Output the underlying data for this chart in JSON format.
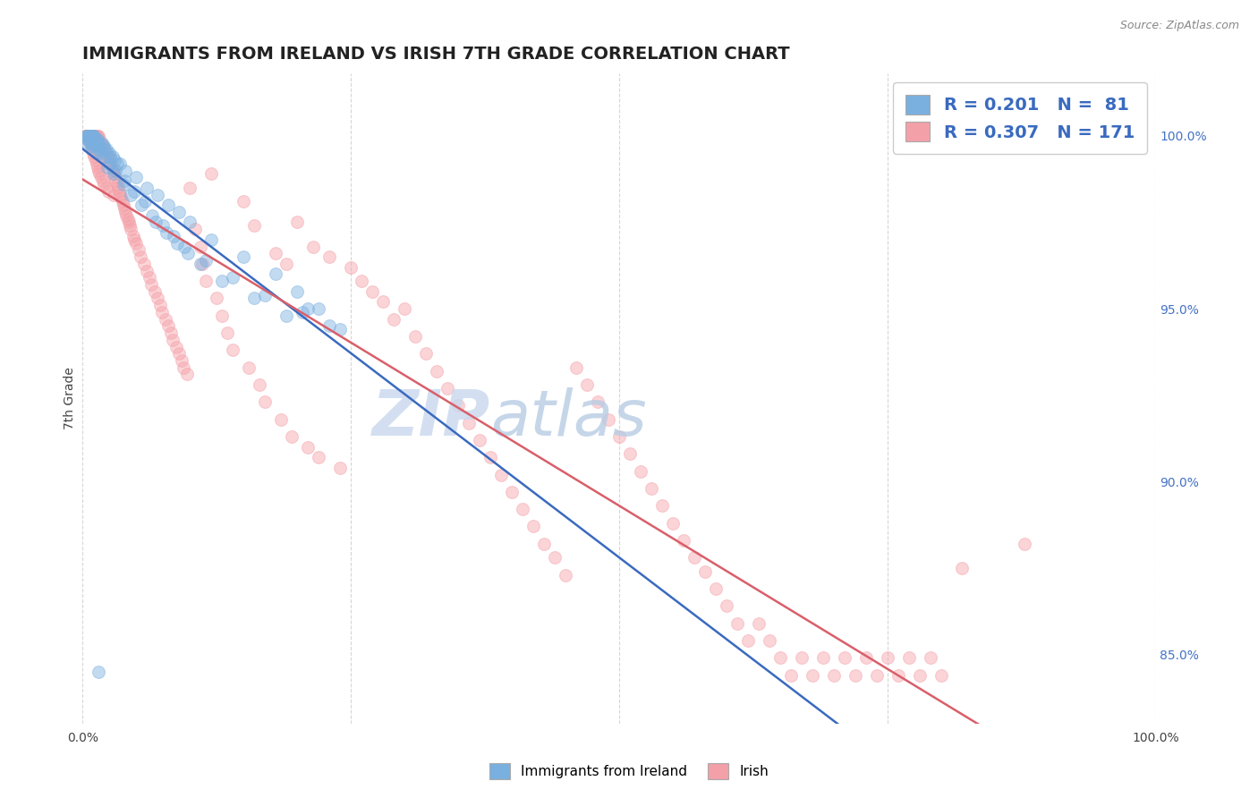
{
  "title": "IMMIGRANTS FROM IRELAND VS IRISH 7TH GRADE CORRELATION CHART",
  "source_text": "Source: ZipAtlas.com",
  "ylabel": "7th Grade",
  "legend_label_blue": "Immigrants from Ireland",
  "legend_label_pink": "Irish",
  "legend_r_blue": "R = 0.201",
  "legend_n_blue": "N =  81",
  "legend_r_pink": "R = 0.307",
  "legend_n_pink": "N = 171",
  "watermark_zip": "ZIP",
  "watermark_atlas": "atlas",
  "blue_color": "#7ab0e0",
  "pink_color": "#f4a0a8",
  "blue_line_color": "#3a6abf",
  "pink_line_color": "#d95f6a",
  "right_ytick_color": "#4472c4",
  "blue_scatter_x": [
    0.3,
    0.4,
    0.5,
    0.5,
    0.5,
    0.6,
    0.6,
    0.7,
    0.8,
    0.8,
    0.8,
    0.9,
    0.9,
    1.0,
    1.0,
    1.0,
    1.0,
    1.1,
    1.1,
    1.2,
    1.3,
    1.3,
    1.4,
    1.4,
    1.5,
    1.5,
    1.6,
    1.7,
    1.8,
    2.0,
    2.0,
    2.1,
    2.2,
    2.3,
    2.5,
    2.5,
    2.6,
    2.8,
    2.9,
    3.0,
    3.1,
    3.2,
    3.5,
    3.8,
    3.9,
    4.0,
    4.5,
    4.8,
    5.0,
    5.5,
    5.8,
    6.0,
    6.5,
    6.8,
    7.0,
    7.5,
    7.8,
    8.0,
    8.5,
    8.8,
    9.0,
    9.5,
    9.8,
    10.0,
    11.0,
    11.5,
    12.0,
    13.0,
    14.0,
    15.0,
    16.0,
    17.0,
    18.0,
    19.0,
    20.0,
    20.5,
    21.0,
    22.0,
    23.0,
    24.0,
    1.5
  ],
  "blue_scatter_y": [
    100.0,
    100.0,
    100.0,
    99.9,
    99.8,
    100.0,
    99.9,
    100.0,
    100.0,
    99.8,
    99.7,
    100.0,
    99.8,
    100.0,
    100.0,
    99.9,
    99.7,
    100.0,
    99.9,
    99.9,
    99.9,
    99.5,
    99.9,
    99.7,
    99.8,
    99.6,
    99.7,
    99.5,
    99.8,
    99.7,
    99.4,
    99.6,
    99.6,
    99.1,
    99.5,
    99.2,
    99.4,
    99.4,
    98.9,
    99.3,
    99.0,
    99.2,
    99.2,
    98.6,
    98.7,
    99.0,
    98.3,
    98.4,
    98.8,
    98.0,
    98.1,
    98.5,
    97.7,
    97.5,
    98.3,
    97.4,
    97.2,
    98.0,
    97.1,
    96.9,
    97.8,
    96.8,
    96.6,
    97.5,
    96.3,
    96.4,
    97.0,
    95.8,
    95.9,
    96.5,
    95.3,
    95.4,
    96.0,
    94.8,
    95.5,
    94.9,
    95.0,
    95.0,
    94.5,
    94.4,
    84.5
  ],
  "pink_scatter_x": [
    0.2,
    0.3,
    0.3,
    0.4,
    0.4,
    0.5,
    0.5,
    0.5,
    0.6,
    0.6,
    0.7,
    0.7,
    0.8,
    0.8,
    0.9,
    0.9,
    1.0,
    1.0,
    1.0,
    1.1,
    1.1,
    1.2,
    1.2,
    1.3,
    1.3,
    1.4,
    1.4,
    1.5,
    1.5,
    1.6,
    1.6,
    1.7,
    1.7,
    1.8,
    1.9,
    1.9,
    2.0,
    2.0,
    2.1,
    2.2,
    2.2,
    2.3,
    2.4,
    2.4,
    2.5,
    2.6,
    2.7,
    2.8,
    2.9,
    2.9,
    3.0,
    3.1,
    3.2,
    3.3,
    3.4,
    3.5,
    3.6,
    3.7,
    3.8,
    3.9,
    4.0,
    4.1,
    4.2,
    4.3,
    4.4,
    4.5,
    4.7,
    4.8,
    5.0,
    5.2,
    5.4,
    5.7,
    6.0,
    6.2,
    6.4,
    6.7,
    7.0,
    7.2,
    7.4,
    7.7,
    8.0,
    8.2,
    8.4,
    8.7,
    9.0,
    9.2,
    9.4,
    9.7,
    10.0,
    10.5,
    11.0,
    11.2,
    11.5,
    12.0,
    12.5,
    13.0,
    13.5,
    14.0,
    15.0,
    15.5,
    16.0,
    16.5,
    17.0,
    18.0,
    18.5,
    19.0,
    19.5,
    20.0,
    21.0,
    21.5,
    22.0,
    23.0,
    24.0,
    25.0,
    26.0,
    27.0,
    28.0,
    29.0,
    30.0,
    31.0,
    32.0,
    33.0,
    34.0,
    35.0,
    36.0,
    37.0,
    38.0,
    39.0,
    40.0,
    41.0,
    42.0,
    43.0,
    44.0,
    45.0,
    46.0,
    47.0,
    48.0,
    49.0,
    50.0,
    51.0,
    52.0,
    53.0,
    54.0,
    55.0,
    56.0,
    57.0,
    58.0,
    59.0,
    60.0,
    61.0,
    62.0,
    63.0,
    64.0,
    65.0,
    66.0,
    67.0,
    68.0,
    69.0,
    70.0,
    71.0,
    72.0,
    73.0,
    74.0,
    75.0,
    76.0,
    77.0,
    78.0,
    79.0,
    80.0,
    82.0,
    87.8
  ],
  "pink_scatter_y": [
    100.0,
    100.0,
    100.0,
    100.0,
    100.0,
    100.0,
    100.0,
    99.9,
    100.0,
    100.0,
    100.0,
    99.8,
    100.0,
    99.7,
    100.0,
    99.6,
    100.0,
    100.0,
    99.5,
    100.0,
    99.4,
    100.0,
    99.3,
    100.0,
    99.2,
    100.0,
    99.1,
    100.0,
    99.0,
    99.9,
    98.9,
    99.8,
    98.8,
    99.7,
    99.7,
    98.7,
    99.6,
    98.6,
    99.5,
    99.5,
    98.5,
    99.4,
    99.4,
    98.4,
    99.3,
    99.2,
    99.1,
    99.0,
    98.9,
    98.3,
    98.8,
    98.7,
    98.6,
    98.5,
    98.4,
    98.3,
    98.2,
    98.1,
    98.0,
    97.9,
    97.8,
    97.7,
    97.6,
    97.5,
    97.4,
    97.3,
    97.1,
    97.0,
    96.9,
    96.7,
    96.5,
    96.3,
    96.1,
    95.9,
    95.7,
    95.5,
    95.3,
    95.1,
    94.9,
    94.7,
    94.5,
    94.3,
    94.1,
    93.9,
    93.7,
    93.5,
    93.3,
    93.1,
    98.5,
    97.3,
    96.8,
    96.3,
    95.8,
    98.9,
    95.3,
    94.8,
    94.3,
    93.8,
    98.1,
    93.3,
    97.4,
    92.8,
    92.3,
    96.6,
    91.8,
    96.3,
    91.3,
    97.5,
    91.0,
    96.8,
    90.7,
    96.5,
    90.4,
    96.2,
    95.8,
    95.5,
    95.2,
    94.7,
    95.0,
    94.2,
    93.7,
    93.2,
    92.7,
    92.2,
    91.7,
    91.2,
    90.7,
    90.2,
    89.7,
    89.2,
    88.7,
    88.2,
    87.8,
    87.3,
    93.3,
    92.8,
    92.3,
    91.8,
    91.3,
    90.8,
    90.3,
    89.8,
    89.3,
    88.8,
    88.3,
    87.8,
    87.4,
    86.9,
    86.4,
    85.9,
    85.4,
    85.9,
    85.4,
    84.9,
    84.4,
    84.9,
    84.4,
    84.9,
    84.4,
    84.9,
    84.4,
    84.9,
    84.4,
    84.9,
    84.4,
    84.9,
    84.4,
    84.9,
    84.4,
    87.5,
    88.2
  ],
  "xmin": 0.0,
  "xmax": 100.0,
  "ymin": 83.0,
  "ymax": 101.8,
  "right_yticks": [
    85.0,
    90.0,
    95.0,
    100.0
  ],
  "right_yticklabels": [
    "85.0%",
    "90.0%",
    "95.0%",
    "100.0%"
  ],
  "background_color": "#ffffff",
  "grid_color": "#cccccc",
  "title_fontsize": 14,
  "scatter_size": 100,
  "scatter_alpha": 0.45,
  "line_width": 1.8,
  "watermark_color_zip": "#c8d8ee",
  "watermark_color_atlas": "#b8cce4"
}
